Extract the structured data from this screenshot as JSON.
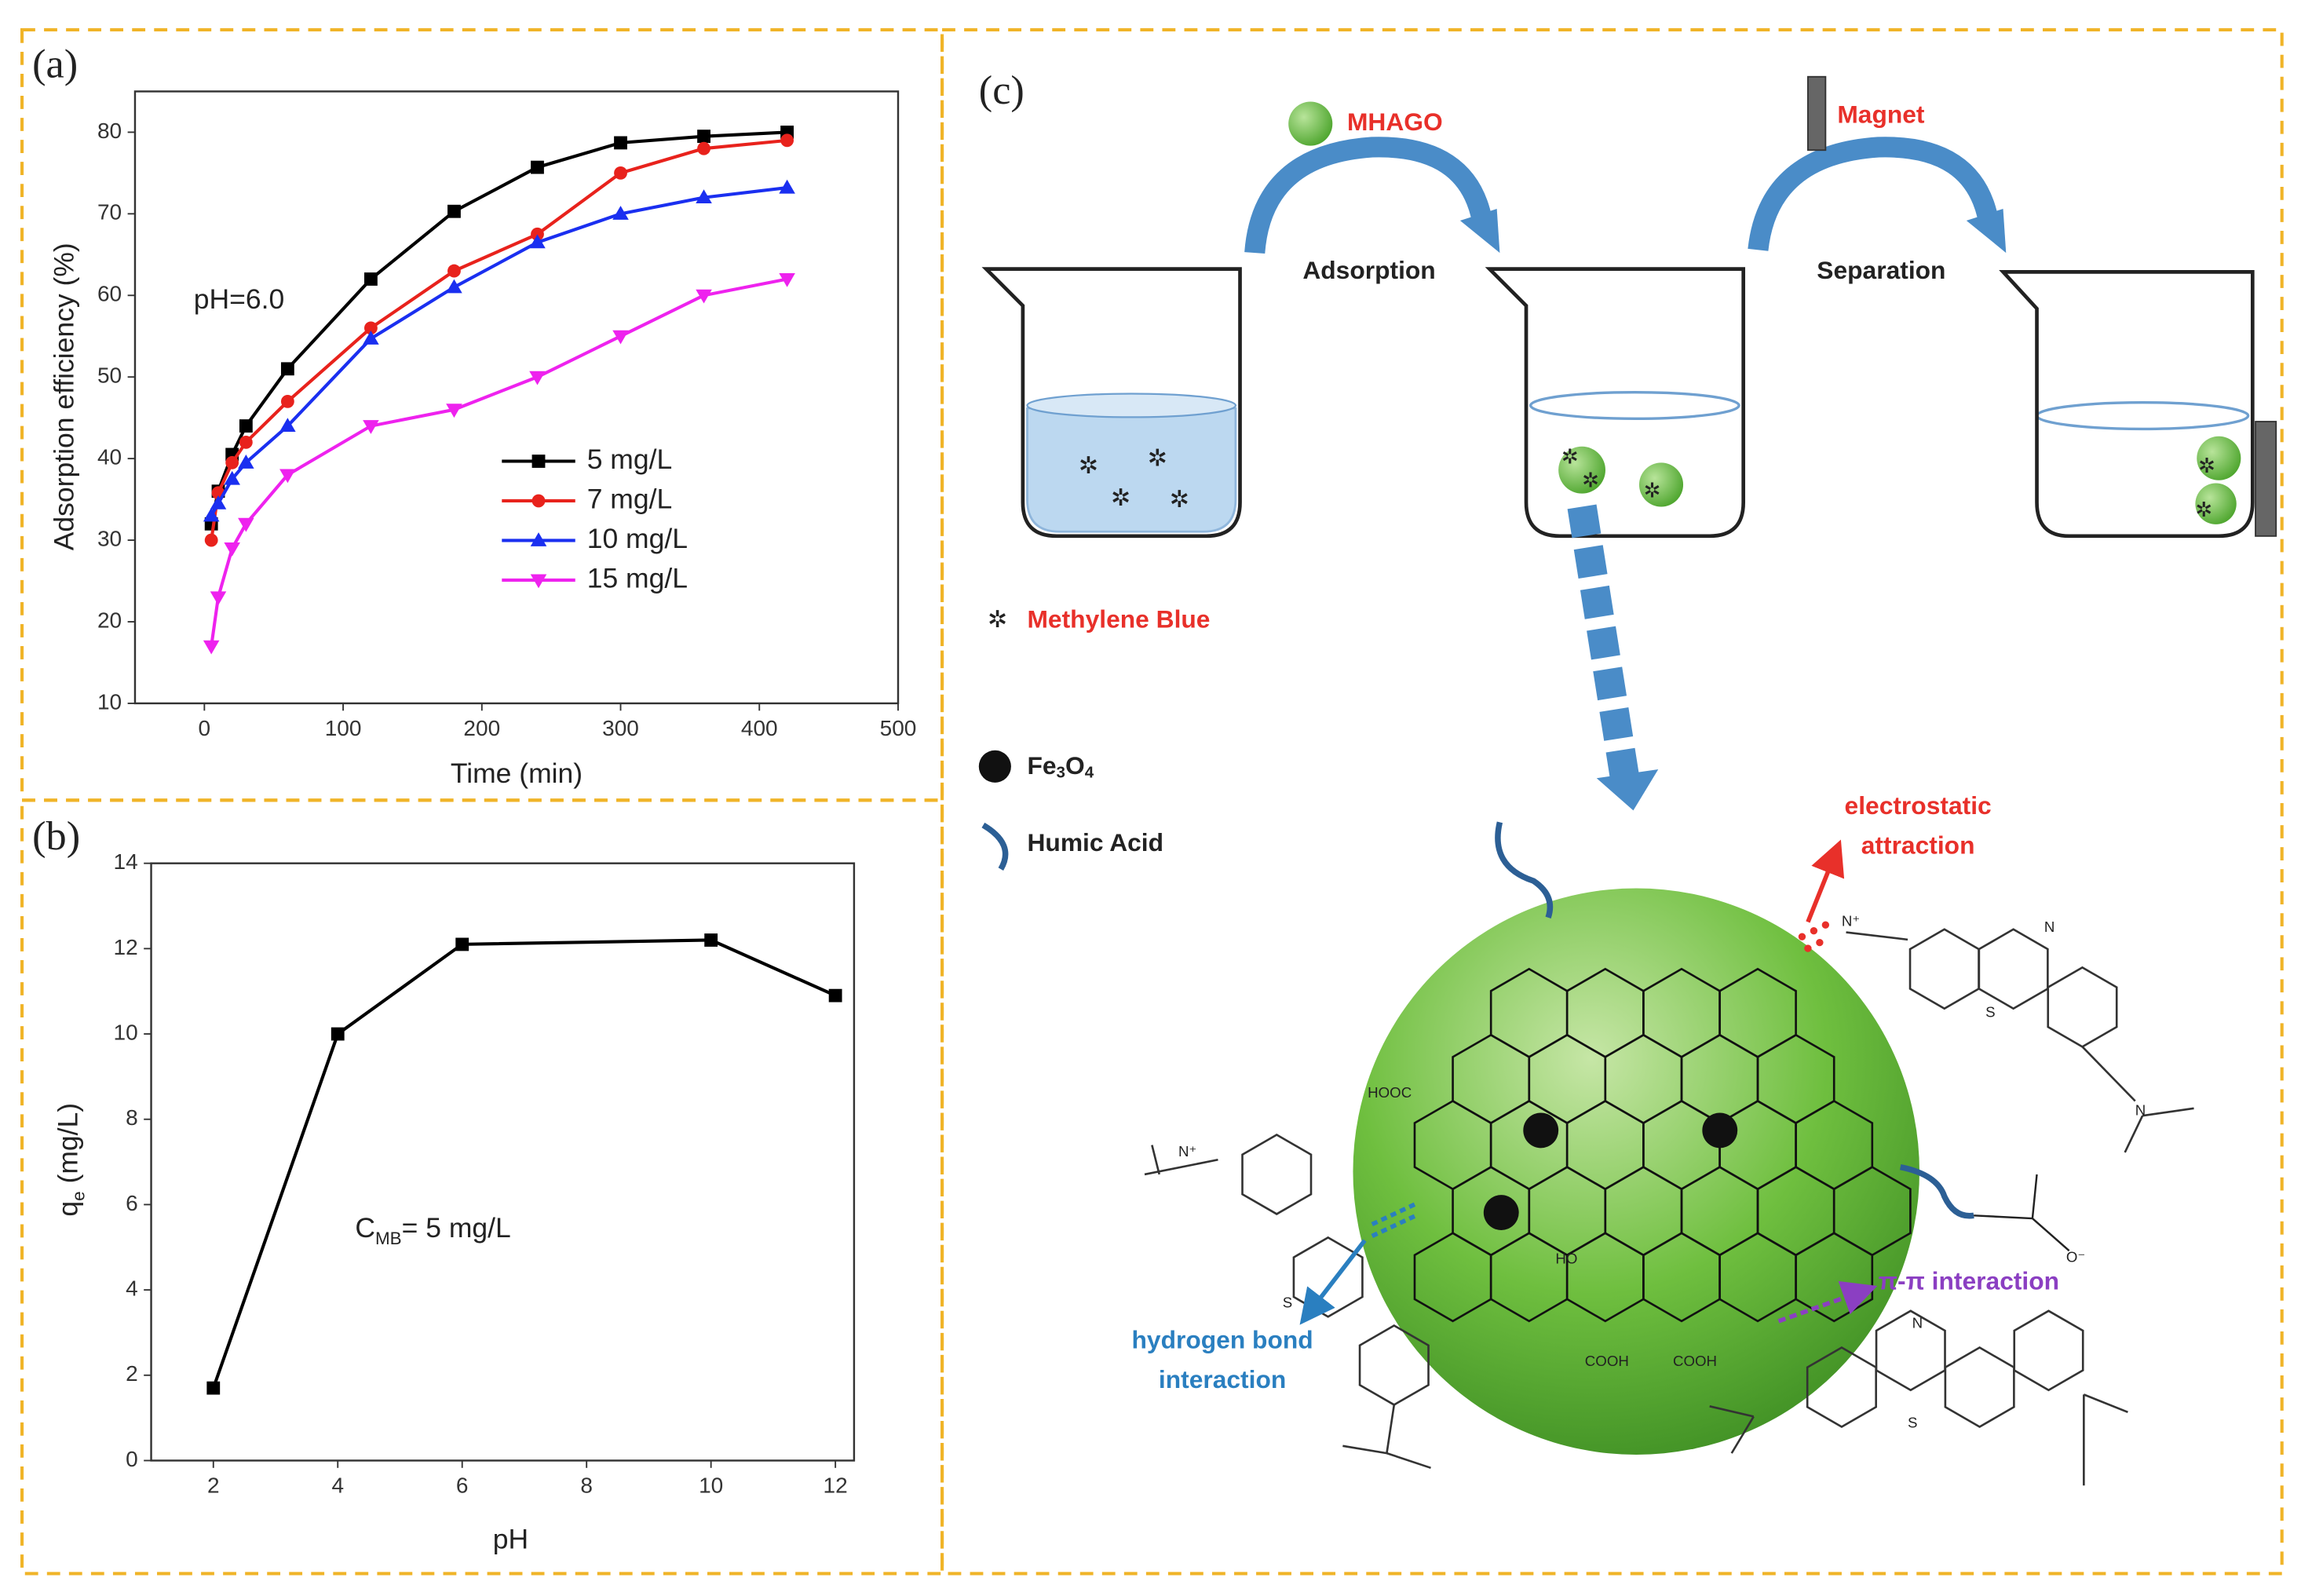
{
  "chart_data": [
    {
      "type": "line",
      "label": "(a)",
      "xlabel": "Time (min)",
      "ylabel": "Adsorption efficiency (%)",
      "annotation": "pH=6.0",
      "x": [
        5,
        10,
        20,
        30,
        60,
        120,
        180,
        240,
        300,
        360,
        420
      ],
      "xlim": [
        -50,
        500
      ],
      "xticks": [
        0,
        100,
        200,
        300,
        400,
        500
      ],
      "ylim": [
        10,
        85
      ],
      "yticks": [
        10,
        20,
        30,
        40,
        50,
        60,
        70,
        80
      ],
      "legend": "lower right",
      "series": [
        {
          "name": "5 mg/L",
          "color": "#000000",
          "marker": "square",
          "values": [
            32,
            36,
            40.5,
            44,
            51,
            62,
            70.3,
            75.7,
            78.7,
            79.5,
            80
          ]
        },
        {
          "name": "7 mg/L",
          "color": "#e8221c",
          "marker": "circle",
          "values": [
            30,
            35.8,
            39.5,
            42,
            47,
            56,
            63,
            67.5,
            75,
            78,
            79
          ]
        },
        {
          "name": "10 mg/L",
          "color": "#1a2ff0",
          "marker": "triangle-up",
          "values": [
            33,
            34.5,
            37.5,
            39.5,
            44,
            54.7,
            61,
            66.5,
            70,
            72,
            73.2
          ]
        },
        {
          "name": "15 mg/L",
          "color": "#ee22ee",
          "marker": "triangle-down",
          "values": [
            17,
            23,
            29,
            32,
            38,
            44,
            46,
            50,
            55,
            60,
            62
          ]
        }
      ]
    },
    {
      "type": "line",
      "label": "(b)",
      "xlabel": "pH",
      "ylabel": [
        "q",
        "e",
        " (mg/L)"
      ],
      "annotation": [
        "C",
        "MB",
        "= 5 mg/L"
      ],
      "x": [
        2,
        4,
        6,
        10,
        12
      ],
      "xlim": [
        1,
        12.3
      ],
      "xticks": [
        2,
        4,
        6,
        8,
        10,
        12
      ],
      "ylim": [
        0,
        14
      ],
      "yticks": [
        0,
        2,
        4,
        6,
        8,
        10,
        12,
        14
      ],
      "series": [
        {
          "color": "#000000",
          "marker": "square",
          "values": [
            1.7,
            10,
            12.1,
            12.2,
            10.9
          ]
        }
      ]
    }
  ],
  "diagram": {
    "label": "(c)",
    "mhago": "MHAGO",
    "magnet": "Magnet",
    "adsorption": "Adsorption",
    "separation": "Separation",
    "methylene_blue": "Methylene Blue",
    "fe3o4": [
      "Fe",
      "3",
      "O",
      "4"
    ],
    "humic_acid": "Humic Acid",
    "electrostatic": [
      "electrostatic",
      "attraction"
    ],
    "hydrogen_bond": [
      "hydrogen bond",
      "interaction"
    ],
    "pi_pi": "π-π interaction",
    "structure_labels": [
      "HOOC",
      "HO",
      "COOH",
      "COOH",
      "N",
      "S",
      "N",
      "S",
      "N",
      "S",
      "N⁺",
      "N⁺",
      "O⁻"
    ]
  }
}
